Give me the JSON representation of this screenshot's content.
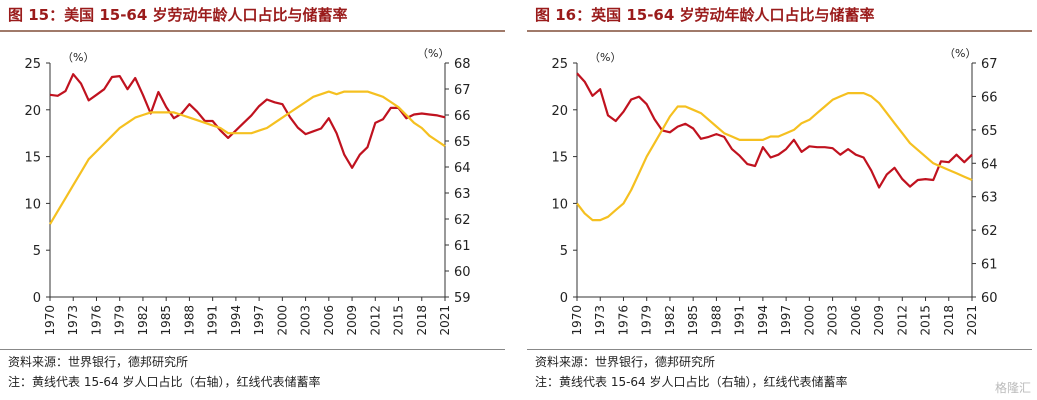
{
  "charts": [
    {
      "title": "图 15：美国 15-64 岁劳动年龄人口占比与储蓄率",
      "source": "资料来源：世界银行，德邦研究所",
      "note": "注：黄线代表 15-64 岁人口占比（右轴），红线代表储蓄率",
      "unit_left": "（%）",
      "unit_right": "（%）"
    },
    {
      "title": "图 16：英国 15-64 岁劳动年龄人口占比与储蓄率",
      "source": "资料来源：世界银行，德邦研究所",
      "note": "注：黄线代表 15-64 岁人口占比（右轴），红线代表储蓄率",
      "unit_left": "（%）",
      "unit_right": "（%）"
    }
  ],
  "watermark": "格隆汇",
  "chart_data": [
    {
      "type": "line",
      "x": [
        1970,
        1971,
        1972,
        1973,
        1974,
        1975,
        1976,
        1977,
        1978,
        1979,
        1980,
        1981,
        1982,
        1983,
        1984,
        1985,
        1986,
        1987,
        1988,
        1989,
        1990,
        1991,
        1992,
        1993,
        1994,
        1995,
        1996,
        1997,
        1998,
        1999,
        2000,
        2001,
        2002,
        2003,
        2004,
        2005,
        2006,
        2007,
        2008,
        2009,
        2010,
        2011,
        2012,
        2013,
        2014,
        2015,
        2016,
        2017,
        2018,
        2019,
        2020,
        2021
      ],
      "x_ticks": [
        1970,
        1973,
        1976,
        1979,
        1982,
        1985,
        1988,
        1991,
        1994,
        1997,
        2000,
        2003,
        2006,
        2009,
        2012,
        2015,
        2018,
        2021
      ],
      "y_left_lim": [
        0,
        25
      ],
      "y_left_ticks": [
        0,
        5,
        10,
        15,
        20,
        25
      ],
      "y_right_lim": [
        59,
        68
      ],
      "y_right_ticks": [
        59,
        60,
        61,
        62,
        63,
        64,
        65,
        66,
        67,
        68
      ],
      "colors": {
        "savings": "#c0121f",
        "population": "#f5c020"
      },
      "series": [
        {
          "axis": "left",
          "color": "#c0121f",
          "values": [
            21.6,
            21.5,
            22.0,
            23.8,
            22.8,
            21.0,
            21.6,
            22.2,
            23.5,
            23.6,
            22.2,
            23.4,
            21.6,
            19.6,
            21.9,
            20.3,
            19.1,
            19.6,
            20.6,
            19.8,
            18.8,
            18.8,
            17.8,
            17.0,
            17.8,
            18.6,
            19.4,
            20.4,
            21.1,
            20.8,
            20.6,
            19.2,
            18.1,
            17.4,
            17.7,
            18.0,
            19.1,
            17.5,
            15.2,
            13.8,
            15.2,
            16.0,
            18.6,
            19.0,
            20.2,
            20.2,
            19.1,
            19.5,
            19.6,
            19.5,
            19.4,
            19.2
          ]
        },
        {
          "axis": "right",
          "color": "#f5c020",
          "values": [
            61.8,
            62.3,
            62.8,
            63.3,
            63.8,
            64.3,
            64.6,
            64.9,
            65.2,
            65.5,
            65.7,
            65.9,
            66.0,
            66.1,
            66.1,
            66.1,
            66.1,
            66.0,
            65.9,
            65.8,
            65.7,
            65.6,
            65.5,
            65.3,
            65.3,
            65.3,
            65.3,
            65.4,
            65.5,
            65.7,
            65.9,
            66.1,
            66.3,
            66.5,
            66.7,
            66.8,
            66.9,
            66.8,
            66.9,
            66.9,
            66.9,
            66.9,
            66.8,
            66.7,
            66.5,
            66.3,
            66.0,
            65.7,
            65.5,
            65.2,
            65.0,
            64.8
          ]
        }
      ]
    },
    {
      "type": "line",
      "x": [
        1970,
        1971,
        1972,
        1973,
        1974,
        1975,
        1976,
        1977,
        1978,
        1979,
        1980,
        1981,
        1982,
        1983,
        1984,
        1985,
        1986,
        1987,
        1988,
        1989,
        1990,
        1991,
        1992,
        1993,
        1994,
        1995,
        1996,
        1997,
        1998,
        1999,
        2000,
        2001,
        2002,
        2003,
        2004,
        2005,
        2006,
        2007,
        2008,
        2009,
        2010,
        2011,
        2012,
        2013,
        2014,
        2015,
        2016,
        2017,
        2018,
        2019,
        2020,
        2021
      ],
      "x_ticks": [
        1970,
        1973,
        1976,
        1979,
        1982,
        1985,
        1988,
        1991,
        1994,
        1997,
        2000,
        2003,
        2006,
        2009,
        2012,
        2015,
        2018,
        2021
      ],
      "y_left_lim": [
        0,
        25
      ],
      "y_left_ticks": [
        0,
        5,
        10,
        15,
        20,
        25
      ],
      "y_right_lim": [
        60,
        67
      ],
      "y_right_ticks": [
        60,
        61,
        62,
        63,
        64,
        65,
        66,
        67
      ],
      "colors": {
        "savings": "#c0121f",
        "population": "#f5c020"
      },
      "series": [
        {
          "axis": "left",
          "color": "#c0121f",
          "values": [
            23.9,
            23.0,
            21.5,
            22.2,
            19.4,
            18.8,
            19.8,
            21.1,
            21.4,
            20.6,
            19.0,
            17.8,
            17.6,
            18.2,
            18.5,
            18.0,
            16.9,
            17.1,
            17.4,
            17.1,
            15.8,
            15.1,
            14.2,
            14.0,
            16.0,
            14.9,
            15.2,
            15.8,
            16.8,
            15.5,
            16.1,
            16.0,
            16.0,
            15.9,
            15.2,
            15.8,
            15.2,
            14.9,
            13.5,
            11.7,
            13.1,
            13.8,
            12.6,
            11.8,
            12.5,
            12.6,
            12.5,
            14.5,
            14.4,
            15.2,
            14.4,
            15.2
          ]
        },
        {
          "axis": "right",
          "color": "#f5c020",
          "values": [
            62.8,
            62.5,
            62.3,
            62.3,
            62.4,
            62.6,
            62.8,
            63.2,
            63.7,
            64.2,
            64.6,
            65.0,
            65.4,
            65.7,
            65.7,
            65.6,
            65.5,
            65.3,
            65.1,
            64.9,
            64.8,
            64.7,
            64.7,
            64.7,
            64.7,
            64.8,
            64.8,
            64.9,
            65.0,
            65.2,
            65.3,
            65.5,
            65.7,
            65.9,
            66.0,
            66.1,
            66.1,
            66.1,
            66.0,
            65.8,
            65.5,
            65.2,
            64.9,
            64.6,
            64.4,
            64.2,
            64.0,
            63.9,
            63.8,
            63.7,
            63.6,
            63.5
          ]
        }
      ]
    }
  ]
}
